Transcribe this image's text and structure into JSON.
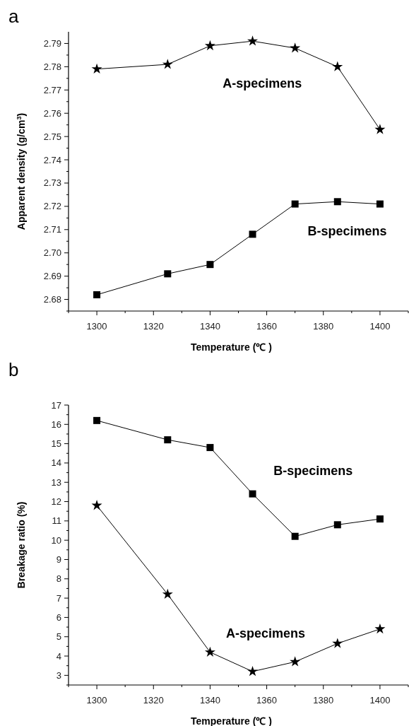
{
  "chart_data": [
    {
      "type": "line",
      "title": "a",
      "xlabel": "Temperature (℃ )",
      "ylabel": "Apparent density (g/cm$^{3}$)",
      "x": [
        1300,
        1325,
        1340,
        1355,
        1370,
        1385,
        1400
      ],
      "xlim": [
        1290,
        1410
      ],
      "xticks": [
        1300,
        1320,
        1340,
        1360,
        1380,
        1400
      ],
      "ylim": [
        2.675,
        2.795
      ],
      "yticks": [
        {
          "value": 2.68,
          "label": "2.68"
        },
        {
          "value": 2.69,
          "label": "2.69"
        },
        {
          "value": 2.7,
          "label": "2.70"
        },
        {
          "value": 2.71,
          "label": "2.71"
        },
        {
          "value": 2.72,
          "label": "2.72"
        },
        {
          "value": 2.73,
          "label": "2.73"
        },
        {
          "value": 2.74,
          "label": "2.74"
        },
        {
          "value": 2.75,
          "label": "2.75"
        },
        {
          "value": 2.76,
          "label": "2.76"
        },
        {
          "value": 2.77,
          "label": "2.77"
        },
        {
          "value": 2.78,
          "label": "2.78"
        },
        {
          "value": 2.79,
          "label": "2.79"
        }
      ],
      "grid": false,
      "legend": false,
      "line_style": "solid",
      "series": [
        {
          "name": "A-specimens",
          "color": "#000000",
          "marker": "star",
          "values": [
            2.779,
            2.781,
            2.789,
            2.791,
            2.788,
            2.78,
            2.753
          ]
        },
        {
          "name": "B-specimens",
          "color": "#000000",
          "marker": "square",
          "values": [
            2.682,
            2.691,
            2.695,
            2.708,
            2.721,
            2.722,
            2.721
          ]
        }
      ]
    },
    {
      "type": "line",
      "title": "b",
      "xlabel": "Temperature (℃ )",
      "ylabel": "Breakage ratio (%)",
      "x": [
        1300,
        1325,
        1340,
        1355,
        1370,
        1385,
        1400
      ],
      "xlim": [
        1290,
        1410
      ],
      "xticks": [
        1300,
        1320,
        1340,
        1360,
        1380,
        1400
      ],
      "ylim": [
        2.5,
        17
      ],
      "yticks": [
        3,
        4,
        5,
        6,
        7,
        8,
        9,
        10,
        11,
        12,
        13,
        14,
        15,
        16,
        17
      ],
      "grid": false,
      "legend": false,
      "line_style": "solid",
      "series": [
        {
          "name": "B-specimens",
          "color": "#000000",
          "marker": "square",
          "values": [
            16.2,
            15.2,
            14.8,
            12.4,
            10.2,
            10.8,
            11.1
          ]
        },
        {
          "name": "A-specimens",
          "color": "#000000",
          "marker": "star",
          "values": [
            11.8,
            7.2,
            4.2,
            3.2,
            3.7,
            4.65,
            5.4
          ]
        }
      ]
    }
  ]
}
